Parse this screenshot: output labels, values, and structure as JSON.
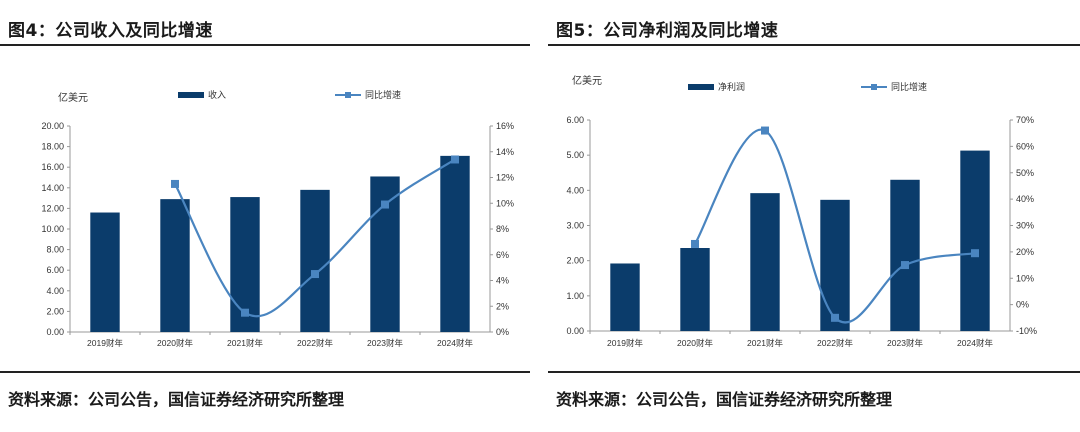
{
  "colors": {
    "bar": "#0b3c6b",
    "line": "#4a85c0",
    "axis": "#999999",
    "text": "#333333"
  },
  "charts": [
    {
      "figure_title": "图4：公司收入及同比增速",
      "source": "资料来源：公司公告，国信证券经济研究所整理",
      "unit_label": "亿美元",
      "legend": {
        "bar": "收入",
        "line": "同比增速"
      },
      "left_ticks": [
        "20.00",
        "18.00",
        "16.00",
        "14.00",
        "12.00",
        "10.00",
        "8.00",
        "6.00",
        "4.00",
        "2.00",
        "0.00"
      ],
      "right_ticks": [
        "16%",
        "14%",
        "12%",
        "10%",
        "8%",
        "6%",
        "4%",
        "2%",
        "0%"
      ]
    },
    {
      "figure_title": "图5：公司净利润及同比增速",
      "source": "资料来源：公司公告，国信证券经济研究所整理",
      "unit_label": "亿美元",
      "legend": {
        "bar": "净利润",
        "line": "同比增速"
      },
      "left_ticks": [
        "6.00",
        "5.00",
        "4.00",
        "3.00",
        "2.00",
        "1.00",
        "0.00"
      ],
      "right_ticks": [
        "70%",
        "60%",
        "50%",
        "40%",
        "30%",
        "20%",
        "10%",
        "0%",
        "-10%"
      ]
    }
  ],
  "chart_data": [
    {
      "type": "bar",
      "title": "图4：公司收入及同比增速",
      "categories": [
        "2019财年",
        "2020财年",
        "2021财年",
        "2022财年",
        "2023财年",
        "2024财年"
      ],
      "series": [
        {
          "name": "收入",
          "type": "bar",
          "axis": "left",
          "values": [
            11.6,
            12.9,
            13.1,
            13.8,
            15.1,
            17.1
          ]
        },
        {
          "name": "同比增速",
          "type": "line",
          "axis": "right",
          "values": [
            null,
            11.5,
            1.5,
            4.5,
            9.9,
            13.4
          ]
        }
      ],
      "ylabel": "亿美元",
      "ylim": [
        0,
        20
      ],
      "y2lim": [
        0,
        16
      ],
      "y2unit": "%"
    },
    {
      "type": "bar",
      "title": "图5：公司净利润及同比增速",
      "categories": [
        "2019财年",
        "2020财年",
        "2021财年",
        "2022财年",
        "2023财年",
        "2024财年"
      ],
      "series": [
        {
          "name": "净利润",
          "type": "bar",
          "axis": "left",
          "values": [
            1.92,
            2.36,
            3.92,
            3.73,
            4.3,
            5.13
          ]
        },
        {
          "name": "同比增速",
          "type": "line",
          "axis": "right",
          "values": [
            null,
            23,
            66,
            -5,
            15,
            19.5
          ]
        }
      ],
      "ylabel": "亿美元",
      "ylim": [
        0,
        6
      ],
      "y2lim": [
        -10,
        70
      ],
      "y2unit": "%"
    }
  ]
}
